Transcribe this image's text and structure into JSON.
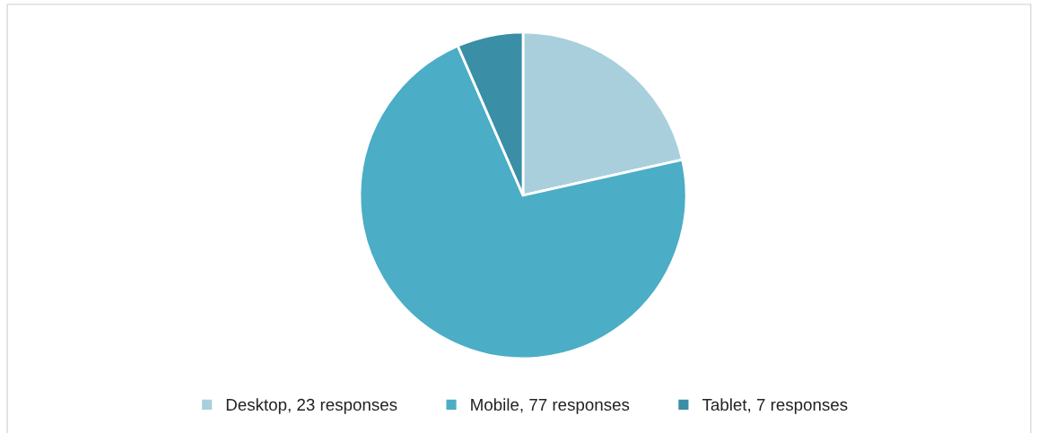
{
  "chart_data": {
    "type": "pie",
    "categories": [
      "Desktop, 23 responses",
      "Mobile, 77 responses",
      "Tablet, 7 responses"
    ],
    "values": [
      23,
      77,
      7
    ],
    "colors": [
      "#a9cfdd",
      "#4badc6",
      "#3a8ea6"
    ],
    "legend": "bottom"
  }
}
